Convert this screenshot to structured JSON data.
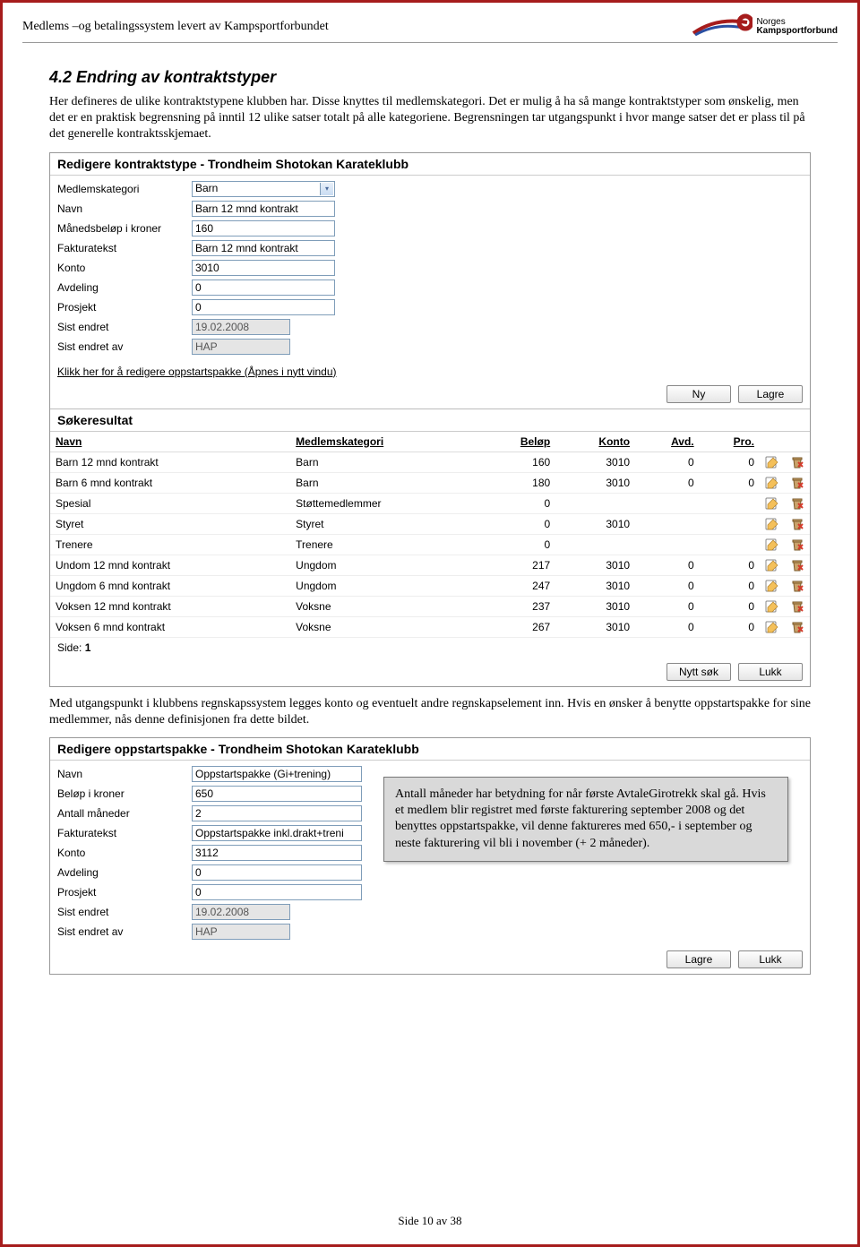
{
  "header": {
    "title": "Medlems –og betalingssystem levert av Kampsportforbundet",
    "logo_line1": "Norges",
    "logo_line2": "Kampsportforbund"
  },
  "section": {
    "heading": "4.2  Endring av kontraktstyper",
    "para": "Her defineres de ulike kontraktstypene klubben har. Disse knyttes til medlemskategori. Det er mulig å ha så mange kontraktstyper som ønskelig, men det er en praktisk begrensning på inntil 12 ulike satser totalt på alle kategoriene. Begrensningen tar utgangspunkt i hvor mange satser det er plass til på det generelle kontraktsskjemaet."
  },
  "panel1": {
    "title": "Redigere kontraktstype - Trondheim Shotokan Karateklubb",
    "fields": {
      "medlemskategori_label": "Medlemskategori",
      "medlemskategori_value": "Barn",
      "navn_label": "Navn",
      "navn_value": "Barn 12 mnd kontrakt",
      "manedsbelop_label": "Månedsbeløp i kroner",
      "manedsbelop_value": "160",
      "fakturatekst_label": "Fakturatekst",
      "fakturatekst_value": "Barn 12 mnd kontrakt",
      "konto_label": "Konto",
      "konto_value": "3010",
      "avdeling_label": "Avdeling",
      "avdeling_value": "0",
      "prosjekt_label": "Prosjekt",
      "prosjekt_value": "0",
      "sistendret_label": "Sist endret",
      "sistendret_value": "19.02.2008",
      "sistendretav_label": "Sist endret av",
      "sistendretav_value": "HAP"
    },
    "link": "Klikk her for å redigere oppstartspakke (Åpnes i nytt vindu)",
    "btn_ny": "Ny",
    "btn_lagre": "Lagre"
  },
  "sok": {
    "title": "Søkeresultat",
    "columns": {
      "navn": "Navn",
      "kat": "Medlemskategori",
      "belop": "Beløp",
      "konto": "Konto",
      "avd": "Avd.",
      "pro": "Pro."
    },
    "rows": [
      {
        "navn": "Barn 12 mnd kontrakt",
        "kat": "Barn",
        "belop": "160",
        "konto": "3010",
        "avd": "0",
        "pro": "0"
      },
      {
        "navn": "Barn 6 mnd kontrakt",
        "kat": "Barn",
        "belop": "180",
        "konto": "3010",
        "avd": "0",
        "pro": "0"
      },
      {
        "navn": "Spesial",
        "kat": "Støttemedlemmer",
        "belop": "0",
        "konto": "",
        "avd": "",
        "pro": ""
      },
      {
        "navn": "Styret",
        "kat": "Styret",
        "belop": "0",
        "konto": "3010",
        "avd": "",
        "pro": ""
      },
      {
        "navn": "Trenere",
        "kat": "Trenere",
        "belop": "0",
        "konto": "",
        "avd": "",
        "pro": ""
      },
      {
        "navn": "Undom 12 mnd kontrakt",
        "kat": "Ungdom",
        "belop": "217",
        "konto": "3010",
        "avd": "0",
        "pro": "0"
      },
      {
        "navn": "Ungdom 6 mnd kontrakt",
        "kat": "Ungdom",
        "belop": "247",
        "konto": "3010",
        "avd": "0",
        "pro": "0"
      },
      {
        "navn": "Voksen 12 mnd kontrakt",
        "kat": "Voksne",
        "belop": "237",
        "konto": "3010",
        "avd": "0",
        "pro": "0"
      },
      {
        "navn": "Voksen 6 mnd kontrakt",
        "kat": "Voksne",
        "belop": "267",
        "konto": "3010",
        "avd": "0",
        "pro": "0"
      }
    ],
    "side_label": "Side:",
    "side_value": "1",
    "btn_nytt": "Nytt søk",
    "btn_lukk": "Lukk"
  },
  "mid_para": "Med utgangspunkt i klubbens regnskapssystem legges konto og eventuelt andre regnskapselement inn. Hvis en ønsker å benytte oppstartspakke for sine medlemmer, nås denne definisjonen fra dette bildet.",
  "panel2": {
    "title": "Redigere oppstartspakke - Trondheim Shotokan Karateklubb",
    "fields": {
      "navn_label": "Navn",
      "navn_value": "Oppstartspakke (Gi+trening)",
      "belop_label": "Beløp i kroner",
      "belop_value": "650",
      "antall_label": "Antall måneder",
      "antall_value": "2",
      "fakturatekst_label": "Fakturatekst",
      "fakturatekst_value": "Oppstartspakke inkl.drakt+treni",
      "konto_label": "Konto",
      "konto_value": "3112",
      "avdeling_label": "Avdeling",
      "avdeling_value": "0",
      "prosjekt_label": "Prosjekt",
      "prosjekt_value": "0",
      "sistendret_label": "Sist endret",
      "sistendret_value": "19.02.2008",
      "sistendretav_label": "Sist endret av",
      "sistendretav_value": "HAP"
    },
    "btn_lagre": "Lagre",
    "btn_lukk": "Lukk"
  },
  "callout": "Antall måneder har betydning for når første AvtaleGirotrekk skal gå. Hvis et medlem blir registret med første fakturering september 2008 og det benyttes oppstartspakke, vil denne faktureres med 650,- i september og neste fakturering vil bli i november (+ 2 måneder).",
  "footer": "Side 10 av 38",
  "colors": {
    "page_border": "#a61c1c",
    "input_border": "#7f9db9",
    "readonly_bg": "#e5e5e5"
  }
}
